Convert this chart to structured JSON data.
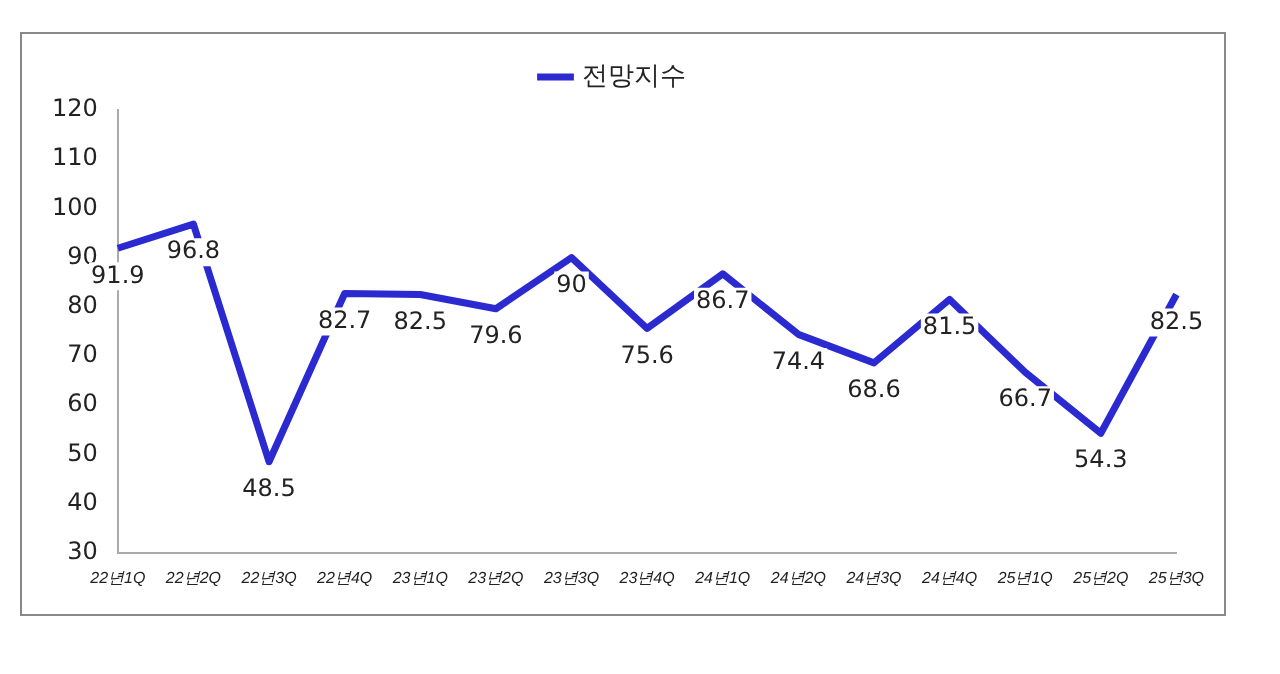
{
  "chart_data": {
    "type": "line",
    "categories": [
      "22년1Q",
      "22년2Q",
      "22년3Q",
      "22년4Q",
      "23년1Q",
      "23년2Q",
      "23년3Q",
      "23년4Q",
      "24년1Q",
      "24년2Q",
      "24년3Q",
      "24년4Q",
      "25년1Q",
      "25년2Q",
      "25년3Q"
    ],
    "series": [
      {
        "name": "전망지수",
        "color": "#2a2ad0",
        "values": [
          91.9,
          96.8,
          48.5,
          82.7,
          82.5,
          79.6,
          90,
          75.6,
          86.7,
          74.4,
          68.6,
          81.5,
          66.7,
          54.3,
          82.5
        ]
      }
    ],
    "ylim": [
      30,
      120
    ],
    "yticks": [
      30,
      40,
      50,
      60,
      70,
      80,
      90,
      100,
      110,
      120
    ],
    "grid": false,
    "legend": "top",
    "marker": "none",
    "data_labels": true
  }
}
